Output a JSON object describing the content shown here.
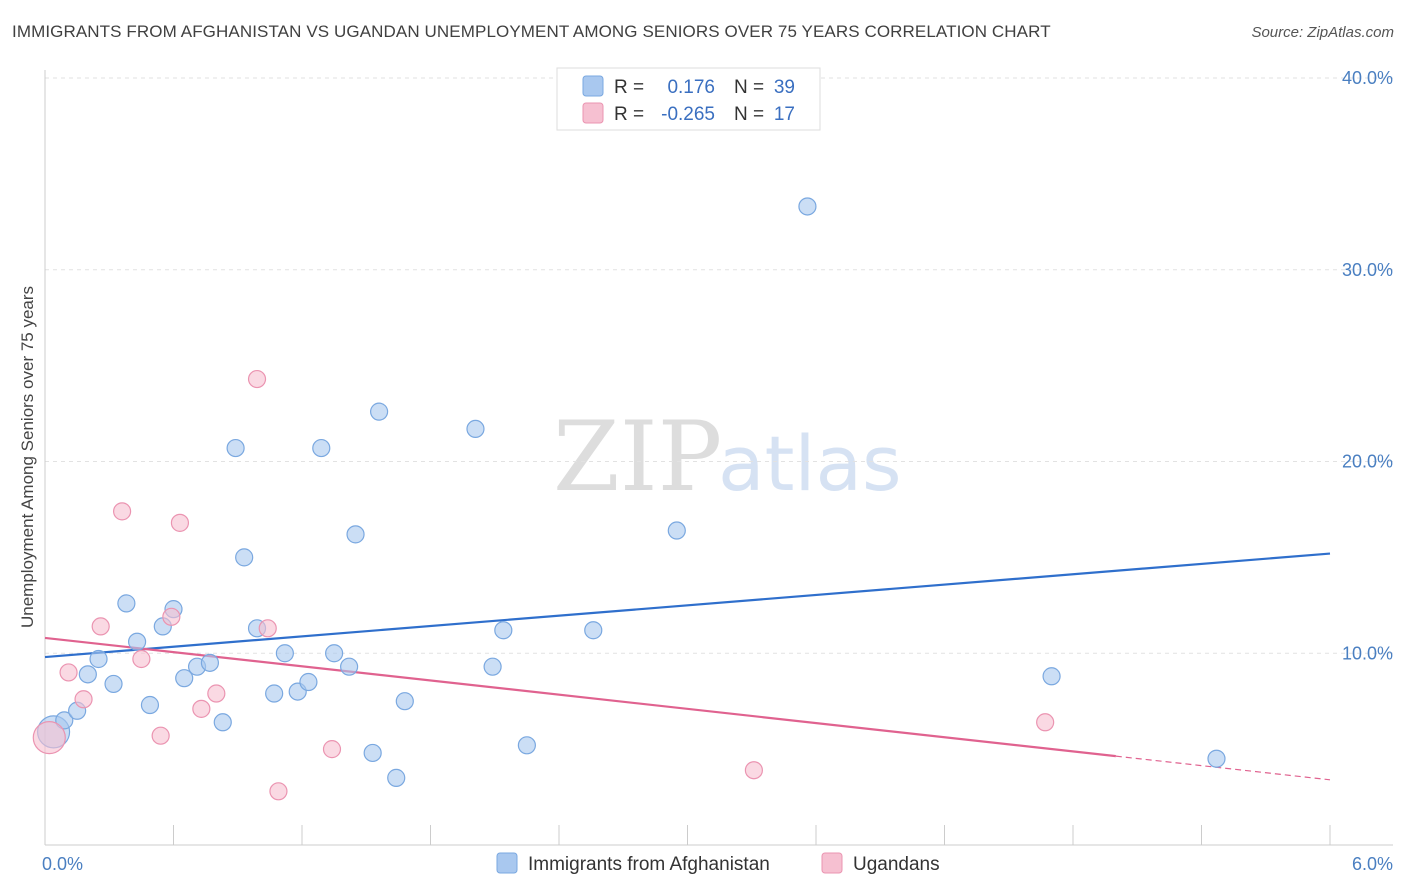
{
  "title": "IMMIGRANTS FROM AFGHANISTAN VS UGANDAN UNEMPLOYMENT AMONG SENIORS OVER 75 YEARS CORRELATION CHART",
  "source": "Source: ZipAtlas.com",
  "watermark": {
    "zip": "ZIP",
    "atlas": "atlas"
  },
  "legend": {
    "r_label": "R =",
    "n_label": "N =",
    "rows": [
      {
        "r": "0.176",
        "n": "39"
      },
      {
        "r": "-0.265",
        "n": "17"
      }
    ]
  },
  "chart_data": {
    "type": "scatter",
    "title": "IMMIGRANTS FROM AFGHANISTAN VS UGANDAN UNEMPLOYMENT AMONG SENIORS OVER 75 YEARS CORRELATION CHART",
    "xlabel": "",
    "ylabel": "Unemployment Among Seniors over 75 years",
    "xlim": [
      0,
      6
    ],
    "ylim": [
      0,
      40
    ],
    "x_tick_labels": [
      "0.0%",
      "6.0%"
    ],
    "y_ticks": [
      10,
      20,
      30,
      40
    ],
    "y_tick_labels": [
      "10.0%",
      "20.0%",
      "30.0%",
      "40.0%"
    ],
    "grid": true,
    "legend_position": "top-center",
    "series": [
      {
        "name": "Immigrants from Afghanistan",
        "color": "#a9c8ef",
        "edge": "#7aa8e0",
        "line_color": "#2f6fcc",
        "trend": {
          "x": [
            0.0,
            6.0
          ],
          "y": [
            9.8,
            15.2
          ],
          "dash_from": null
        },
        "points": [
          {
            "x": 0.04,
            "y": 5.9,
            "big": true
          },
          {
            "x": 0.09,
            "y": 6.5
          },
          {
            "x": 0.15,
            "y": 7.0
          },
          {
            "x": 0.2,
            "y": 8.9
          },
          {
            "x": 0.25,
            "y": 9.7
          },
          {
            "x": 0.32,
            "y": 8.4
          },
          {
            "x": 0.38,
            "y": 12.6
          },
          {
            "x": 0.43,
            "y": 10.6
          },
          {
            "x": 0.49,
            "y": 7.3
          },
          {
            "x": 0.55,
            "y": 11.4
          },
          {
            "x": 0.6,
            "y": 12.3
          },
          {
            "x": 0.65,
            "y": 8.7
          },
          {
            "x": 0.71,
            "y": 9.3
          },
          {
            "x": 0.77,
            "y": 9.5
          },
          {
            "x": 0.83,
            "y": 6.4
          },
          {
            "x": 0.89,
            "y": 20.7
          },
          {
            "x": 0.93,
            "y": 15.0
          },
          {
            "x": 0.99,
            "y": 11.3
          },
          {
            "x": 1.07,
            "y": 7.9
          },
          {
            "x": 1.12,
            "y": 10.0
          },
          {
            "x": 1.18,
            "y": 8.0
          },
          {
            "x": 1.23,
            "y": 8.5
          },
          {
            "x": 1.29,
            "y": 20.7
          },
          {
            "x": 1.35,
            "y": 10.0
          },
          {
            "x": 1.42,
            "y": 9.3
          },
          {
            "x": 1.45,
            "y": 16.2
          },
          {
            "x": 1.53,
            "y": 4.8
          },
          {
            "x": 1.56,
            "y": 22.6
          },
          {
            "x": 1.64,
            "y": 3.5
          },
          {
            "x": 1.68,
            "y": 7.5
          },
          {
            "x": 2.01,
            "y": 21.7
          },
          {
            "x": 2.09,
            "y": 9.3
          },
          {
            "x": 2.14,
            "y": 11.2
          },
          {
            "x": 2.25,
            "y": 5.2
          },
          {
            "x": 2.56,
            "y": 11.2
          },
          {
            "x": 2.95,
            "y": 16.4
          },
          {
            "x": 3.56,
            "y": 33.3
          },
          {
            "x": 4.7,
            "y": 8.8
          },
          {
            "x": 5.47,
            "y": 4.5
          }
        ]
      },
      {
        "name": "Ugandans",
        "color": "#f6c0d1",
        "edge": "#eb94b1",
        "line_color": "#e0628f",
        "trend": {
          "x": [
            0.0,
            6.0
          ],
          "y": [
            10.8,
            3.4
          ],
          "dash_from": 5.0
        },
        "points": [
          {
            "x": 0.02,
            "y": 5.6,
            "big": true
          },
          {
            "x": 0.11,
            "y": 9.0
          },
          {
            "x": 0.18,
            "y": 7.6
          },
          {
            "x": 0.26,
            "y": 11.4
          },
          {
            "x": 0.36,
            "y": 17.4
          },
          {
            "x": 0.45,
            "y": 9.7
          },
          {
            "x": 0.54,
            "y": 5.7
          },
          {
            "x": 0.59,
            "y": 11.9
          },
          {
            "x": 0.63,
            "y": 16.8
          },
          {
            "x": 0.73,
            "y": 7.1
          },
          {
            "x": 0.8,
            "y": 7.9
          },
          {
            "x": 0.99,
            "y": 24.3
          },
          {
            "x": 1.04,
            "y": 11.3
          },
          {
            "x": 1.09,
            "y": 2.8
          },
          {
            "x": 1.34,
            "y": 5.0
          },
          {
            "x": 3.31,
            "y": 3.9
          },
          {
            "x": 4.67,
            "y": 6.4
          }
        ]
      }
    ]
  }
}
